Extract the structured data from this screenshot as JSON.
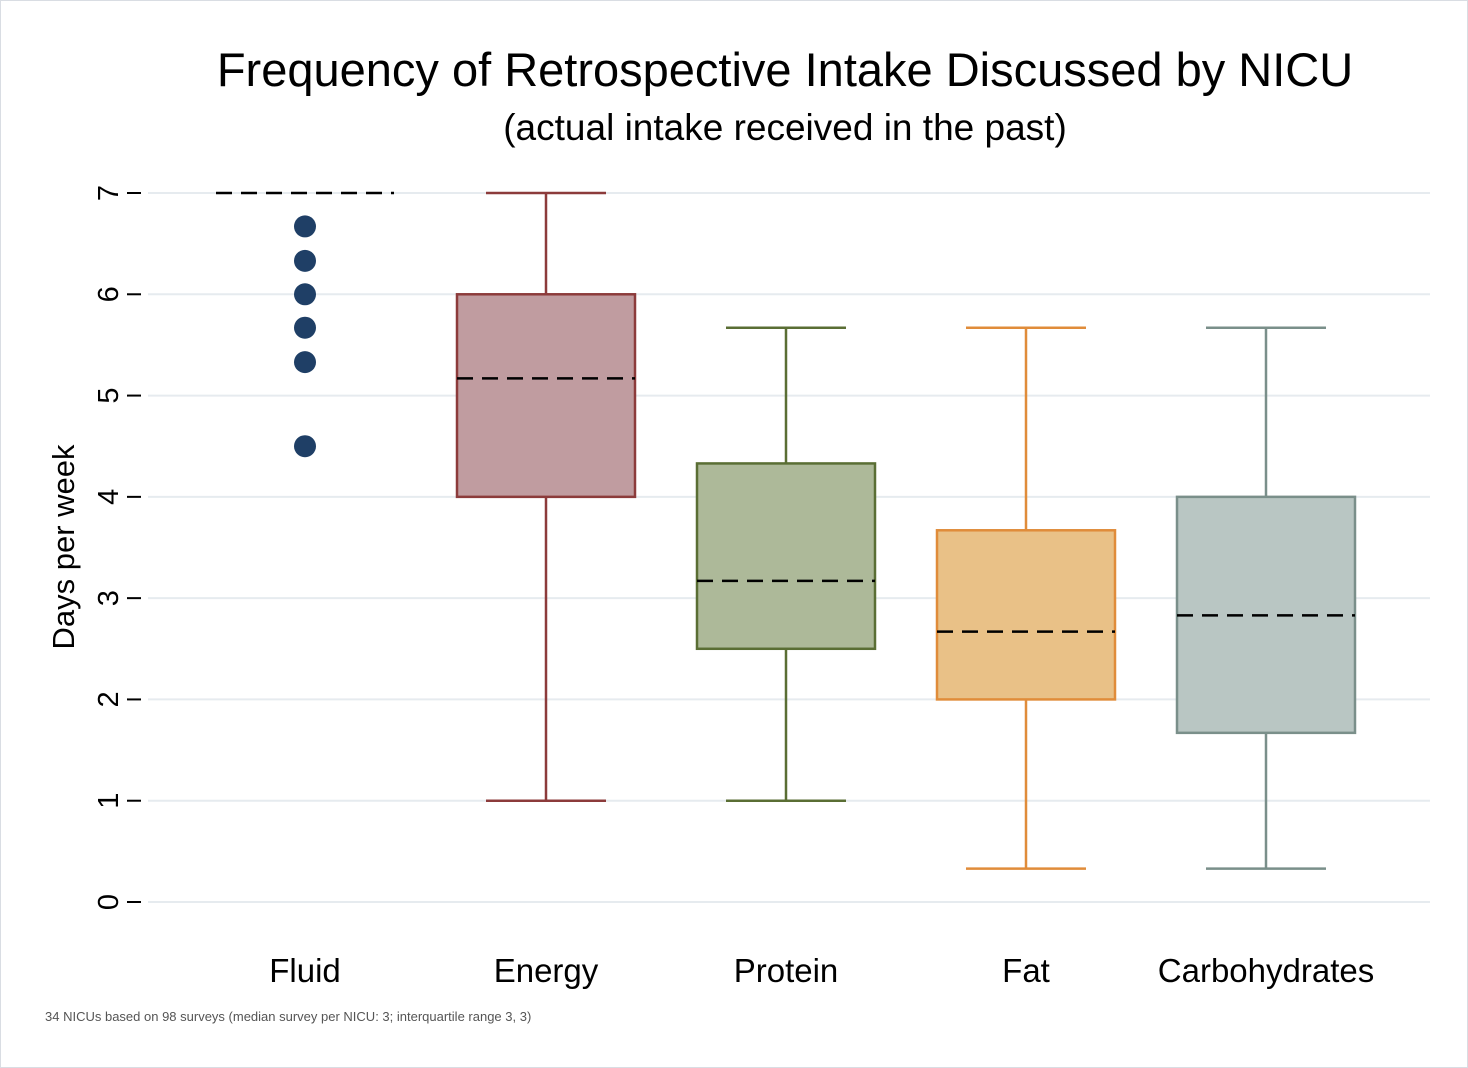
{
  "chart_data": {
    "type": "box",
    "title": "Frequency of Retrospective Intake Discussed by NICU",
    "subtitle": "(actual intake received in the past)",
    "ylabel": "Days per week",
    "xlabel": "",
    "ylim": [
      0,
      7
    ],
    "yticks": [
      "0",
      "1",
      "2",
      "3",
      "4",
      "5",
      "6",
      "7"
    ],
    "grid": true,
    "note": "34 NICUs based on 98 surveys (median survey per NICU: 3; interquartile range 3, 3)",
    "categories": [
      "Fluid",
      "Energy",
      "Protein",
      "Fat",
      "Carbohydrates"
    ],
    "series": [
      {
        "whisker_low": 7,
        "q1": 7,
        "median": 7,
        "q3": 7,
        "whisker_high": 7,
        "outliers": [
          6.67,
          6.33,
          6.0,
          5.67,
          5.33,
          4.5
        ],
        "color": "#1f3f66",
        "fill": "#1f3f66"
      },
      {
        "whisker_low": 1,
        "q1": 4.0,
        "median": 5.17,
        "q3": 6.0,
        "whisker_high": 7,
        "outliers": [],
        "color": "#8c3b3b",
        "fill": "#c09ca0"
      },
      {
        "whisker_low": 1,
        "q1": 2.5,
        "median": 3.17,
        "q3": 4.33,
        "whisker_high": 5.67,
        "outliers": [],
        "color": "#5a6e34",
        "fill": "#adb999"
      },
      {
        "whisker_low": 0.33,
        "q1": 2.0,
        "median": 2.67,
        "q3": 3.67,
        "whisker_high": 5.67,
        "outliers": [],
        "color": "#e08c3a",
        "fill": "#e9c187"
      },
      {
        "whisker_low": 0.33,
        "q1": 1.67,
        "median": 2.83,
        "q3": 4.0,
        "whisker_high": 5.67,
        "outliers": [],
        "color": "#7a8f8a",
        "fill": "#b9c6c3"
      }
    ]
  }
}
